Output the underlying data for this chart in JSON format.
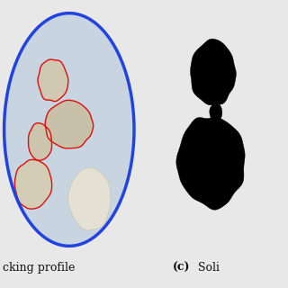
{
  "bg_color": "#e8e8e8",
  "left_bg": "#000000",
  "circle_color": "#2244dd",
  "circle_edge_width": 2.5,
  "circle_bg_inner": "#c8d4e0",
  "caption_left": "cking profile",
  "caption_right_bold": "(c)",
  "caption_right_normal": " Soli",
  "caption_fontsize": 9,
  "fig_width": 3.2,
  "fig_height": 3.2
}
